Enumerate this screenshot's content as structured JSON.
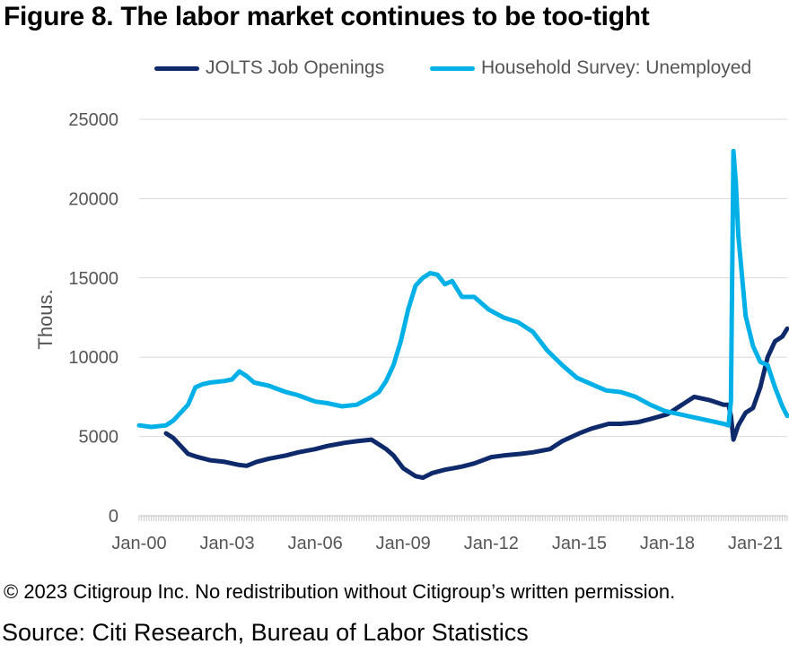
{
  "title": "Figure 8. The labor market continues to be too-tight",
  "copyright": "© 2023 Citigroup Inc. No redistribution without Citigroup’s written permission.",
  "source": "Source: Citi Research, Bureau of Labor Statistics",
  "chart_data": {
    "type": "line",
    "ylabel": "Thous.",
    "xlabel": "",
    "ylim": [
      0,
      25000
    ],
    "yticks": [
      0,
      5000,
      10000,
      15000,
      20000,
      25000
    ],
    "xlim": [
      "2000-01",
      "2022-02"
    ],
    "xtick_labels": [
      "Jan-00",
      "Jan-03",
      "Jan-06",
      "Jan-09",
      "Jan-12",
      "Jan-15",
      "Jan-18",
      "Jan-21"
    ],
    "grid": "horizontal",
    "legend": "top",
    "series": [
      {
        "name": "JOLTS Job Openings",
        "color": "#0e2a6b",
        "points": [
          [
            "2000-12",
            5200
          ],
          [
            "2001-03",
            4900
          ],
          [
            "2001-06",
            4400
          ],
          [
            "2001-09",
            3900
          ],
          [
            "2002-01",
            3700
          ],
          [
            "2002-06",
            3500
          ],
          [
            "2002-12",
            3400
          ],
          [
            "2003-03",
            3300
          ],
          [
            "2003-06",
            3200
          ],
          [
            "2003-09",
            3150
          ],
          [
            "2004-01",
            3400
          ],
          [
            "2004-06",
            3600
          ],
          [
            "2005-01",
            3800
          ],
          [
            "2005-06",
            4000
          ],
          [
            "2006-01",
            4200
          ],
          [
            "2006-06",
            4400
          ],
          [
            "2007-01",
            4600
          ],
          [
            "2007-06",
            4700
          ],
          [
            "2007-12",
            4800
          ],
          [
            "2008-03",
            4500
          ],
          [
            "2008-06",
            4200
          ],
          [
            "2008-09",
            3800
          ],
          [
            "2009-01",
            3000
          ],
          [
            "2009-06",
            2500
          ],
          [
            "2009-09",
            2400
          ],
          [
            "2010-01",
            2700
          ],
          [
            "2010-06",
            2900
          ],
          [
            "2011-01",
            3100
          ],
          [
            "2011-06",
            3300
          ],
          [
            "2012-01",
            3700
          ],
          [
            "2012-06",
            3800
          ],
          [
            "2013-01",
            3900
          ],
          [
            "2013-06",
            4000
          ],
          [
            "2014-01",
            4200
          ],
          [
            "2014-06",
            4700
          ],
          [
            "2015-01",
            5200
          ],
          [
            "2015-06",
            5500
          ],
          [
            "2016-01",
            5800
          ],
          [
            "2016-06",
            5800
          ],
          [
            "2017-01",
            5900
          ],
          [
            "2017-06",
            6100
          ],
          [
            "2018-01",
            6400
          ],
          [
            "2018-06",
            6900
          ],
          [
            "2018-12",
            7500
          ],
          [
            "2019-06",
            7300
          ],
          [
            "2019-12",
            7000
          ],
          [
            "2020-02",
            7000
          ],
          [
            "2020-03",
            6300
          ],
          [
            "2020-04",
            4800
          ],
          [
            "2020-06",
            5700
          ],
          [
            "2020-09",
            6500
          ],
          [
            "2020-12",
            6800
          ],
          [
            "2021-03",
            8100
          ],
          [
            "2021-06",
            10000
          ],
          [
            "2021-09",
            11000
          ],
          [
            "2021-12",
            11300
          ],
          [
            "2022-02",
            11800
          ]
        ]
      },
      {
        "name": "Household Survey: Unemployed",
        "color": "#00b0e6",
        "points": [
          [
            "2000-01",
            5700
          ],
          [
            "2000-06",
            5600
          ],
          [
            "2000-12",
            5700
          ],
          [
            "2001-03",
            6000
          ],
          [
            "2001-06",
            6500
          ],
          [
            "2001-09",
            7000
          ],
          [
            "2001-12",
            8100
          ],
          [
            "2002-03",
            8300
          ],
          [
            "2002-06",
            8400
          ],
          [
            "2002-12",
            8500
          ],
          [
            "2003-03",
            8600
          ],
          [
            "2003-06",
            9100
          ],
          [
            "2003-09",
            8800
          ],
          [
            "2003-12",
            8400
          ],
          [
            "2004-06",
            8200
          ],
          [
            "2005-01",
            7800
          ],
          [
            "2005-06",
            7600
          ],
          [
            "2006-01",
            7200
          ],
          [
            "2006-06",
            7100
          ],
          [
            "2006-12",
            6900
          ],
          [
            "2007-06",
            7000
          ],
          [
            "2007-12",
            7500
          ],
          [
            "2008-03",
            7800
          ],
          [
            "2008-06",
            8500
          ],
          [
            "2008-09",
            9500
          ],
          [
            "2008-12",
            11000
          ],
          [
            "2009-03",
            13000
          ],
          [
            "2009-06",
            14500
          ],
          [
            "2009-09",
            15000
          ],
          [
            "2009-12",
            15300
          ],
          [
            "2010-03",
            15200
          ],
          [
            "2010-06",
            14600
          ],
          [
            "2010-09",
            14800
          ],
          [
            "2011-01",
            13800
          ],
          [
            "2011-06",
            13800
          ],
          [
            "2011-12",
            13000
          ],
          [
            "2012-06",
            12500
          ],
          [
            "2012-12",
            12200
          ],
          [
            "2013-06",
            11600
          ],
          [
            "2013-12",
            10400
          ],
          [
            "2014-06",
            9500
          ],
          [
            "2014-12",
            8700
          ],
          [
            "2015-06",
            8300
          ],
          [
            "2015-12",
            7900
          ],
          [
            "2016-06",
            7800
          ],
          [
            "2016-12",
            7500
          ],
          [
            "2017-06",
            7000
          ],
          [
            "2017-12",
            6600
          ],
          [
            "2018-06",
            6400
          ],
          [
            "2018-12",
            6200
          ],
          [
            "2019-06",
            6000
          ],
          [
            "2019-12",
            5800
          ],
          [
            "2020-02",
            5700
          ],
          [
            "2020-03",
            7200
          ],
          [
            "2020-04",
            23000
          ],
          [
            "2020-05",
            21000
          ],
          [
            "2020-06",
            17700
          ],
          [
            "2020-09",
            12600
          ],
          [
            "2020-12",
            10700
          ],
          [
            "2021-03",
            9700
          ],
          [
            "2021-06",
            9500
          ],
          [
            "2021-09",
            8100
          ],
          [
            "2021-12",
            6900
          ],
          [
            "2022-02",
            6300
          ]
        ]
      }
    ]
  }
}
